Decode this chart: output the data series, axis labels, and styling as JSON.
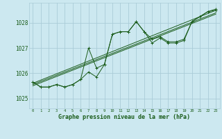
{
  "bg_color": "#cce8f0",
  "grid_color": "#aaccd8",
  "line_color": "#1a5c1a",
  "xlabel": "Graphe pression niveau de la mer (hPa)",
  "ylim": [
    1024.6,
    1028.8
  ],
  "xlim": [
    -0.5,
    23.5
  ],
  "yticks": [
    1025,
    1026,
    1027,
    1028
  ],
  "xticks": [
    0,
    1,
    2,
    3,
    4,
    5,
    6,
    7,
    8,
    9,
    10,
    11,
    12,
    13,
    14,
    15,
    16,
    17,
    18,
    19,
    20,
    21,
    22,
    23
  ],
  "series1_x": [
    0,
    1,
    2,
    3,
    4,
    5,
    6,
    7,
    8,
    9,
    10,
    11,
    12,
    13,
    14,
    15,
    16,
    17,
    18,
    19,
    20,
    21,
    22,
    23
  ],
  "series1_y": [
    1025.65,
    1025.45,
    1025.45,
    1025.55,
    1025.45,
    1025.55,
    1025.75,
    1027.0,
    1026.2,
    1026.35,
    1027.55,
    1027.65,
    1027.65,
    1028.05,
    1027.65,
    1027.35,
    1027.45,
    1027.25,
    1027.25,
    1027.35,
    1028.05,
    1028.25,
    1028.45,
    1028.5
  ],
  "series2_x": [
    0,
    1,
    2,
    3,
    4,
    5,
    6,
    7,
    8,
    9,
    10,
    11,
    12,
    13,
    14,
    15,
    16,
    17,
    18,
    19,
    20,
    21,
    22,
    23
  ],
  "series2_y": [
    1025.65,
    1025.45,
    1025.45,
    1025.55,
    1025.45,
    1025.55,
    1025.75,
    1026.05,
    1025.85,
    1026.35,
    1027.55,
    1027.65,
    1027.65,
    1028.05,
    1027.65,
    1027.2,
    1027.4,
    1027.2,
    1027.2,
    1027.3,
    1028.05,
    1028.25,
    1028.45,
    1028.55
  ],
  "trend1_x": [
    0,
    23
  ],
  "trend1_y": [
    1025.5,
    1028.35
  ],
  "trend2_x": [
    0,
    23
  ],
  "trend2_y": [
    1025.55,
    1028.4
  ],
  "trend3_x": [
    0,
    23
  ],
  "trend3_y": [
    1025.6,
    1028.5
  ]
}
